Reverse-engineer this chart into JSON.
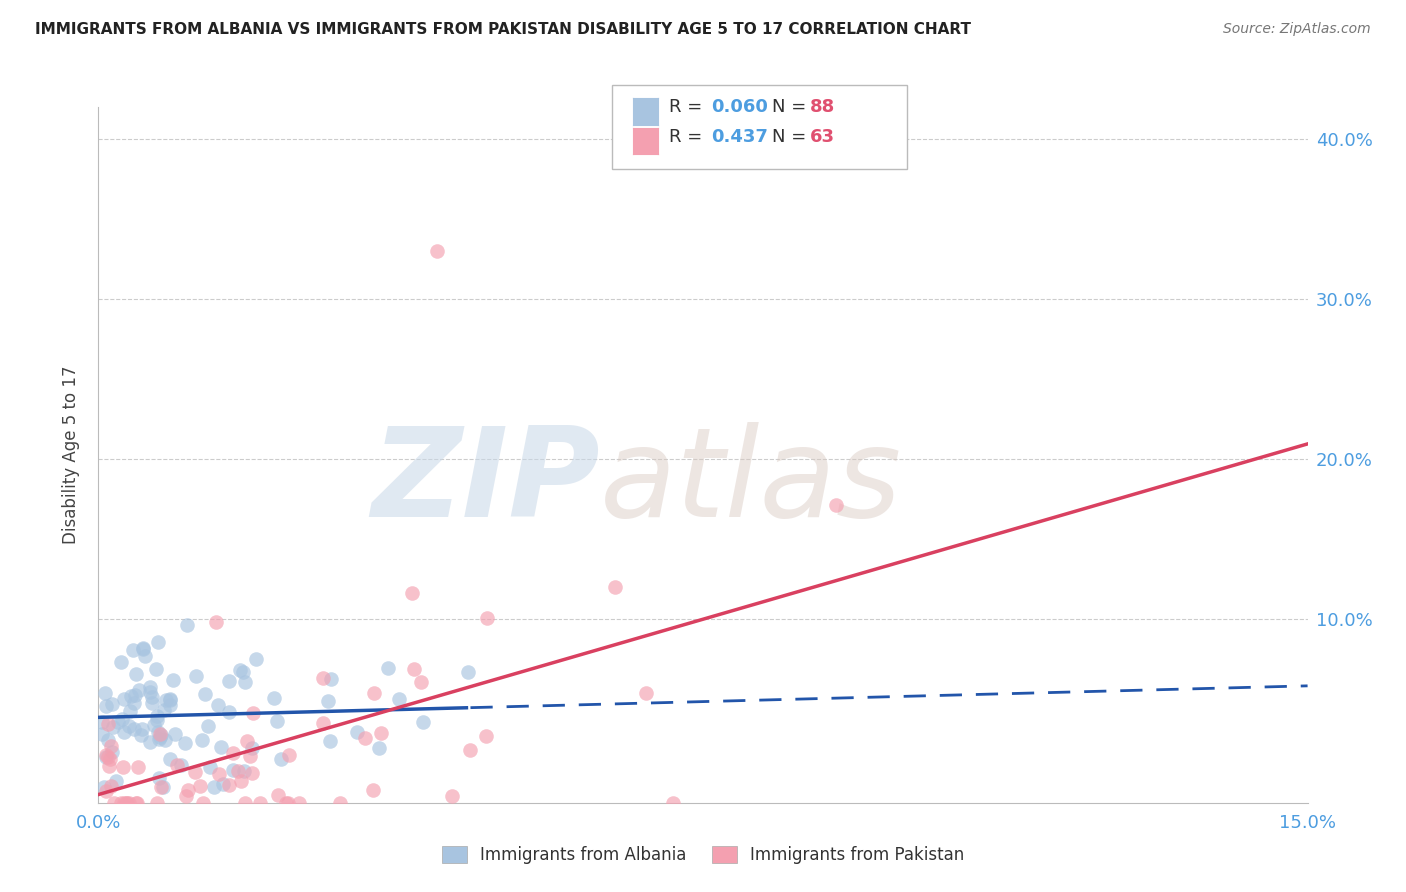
{
  "title": "IMMIGRANTS FROM ALBANIA VS IMMIGRANTS FROM PAKISTAN DISABILITY AGE 5 TO 17 CORRELATION CHART",
  "source": "Source: ZipAtlas.com",
  "ylabel_label": "Disability Age 5 to 17",
  "xlim": [
    0.0,
    0.15
  ],
  "ylim": [
    -0.015,
    0.42
  ],
  "albania_R": 0.06,
  "albania_N": 88,
  "pakistan_R": 0.437,
  "pakistan_N": 63,
  "albania_color": "#a8c4e0",
  "albania_line_color": "#2255aa",
  "pakistan_color": "#f4a0b0",
  "pakistan_line_color": "#d94060",
  "watermark_zip": "ZIP",
  "watermark_atlas": "atlas",
  "background_color": "#ffffff",
  "grid_color": "#cccccc",
  "axis_label_color": "#4d9de0",
  "title_color": "#222222",
  "legend_val_color": "#4d9de0",
  "legend_n_color": "#e05070"
}
